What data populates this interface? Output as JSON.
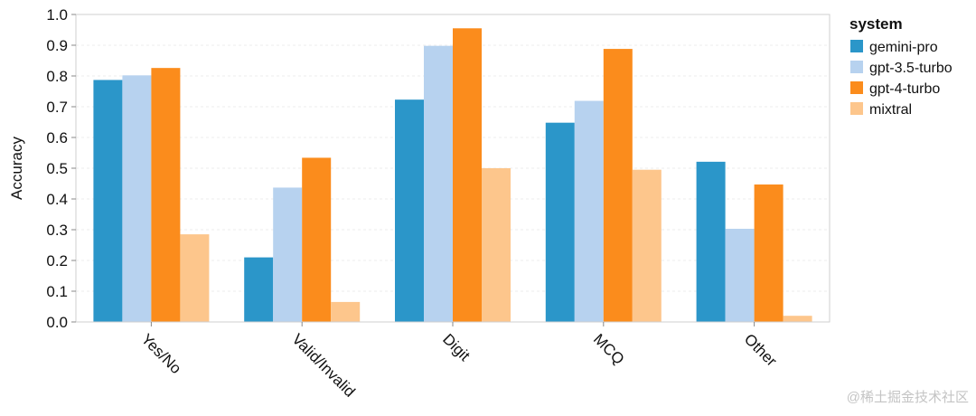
{
  "chart_data": {
    "type": "bar",
    "ylabel": "Accuracy",
    "xlabel": "",
    "ylim": [
      0,
      1.0
    ],
    "yticks": [
      "0.0",
      "0.1",
      "0.2",
      "0.3",
      "0.4",
      "0.5",
      "0.6",
      "0.7",
      "0.8",
      "0.9",
      "1.0"
    ],
    "grid": true,
    "categories": [
      "Yes/No",
      "Valid/Invalid",
      "Digit",
      "MCQ",
      "Other"
    ],
    "legend": {
      "title": "system",
      "placement": "right"
    },
    "series": [
      {
        "name": "gemini-pro",
        "color": "#2b96c9",
        "values": [
          0.787,
          0.21,
          0.723,
          0.648,
          0.521
        ]
      },
      {
        "name": "gpt-3.5-turbo",
        "color": "#b7d2ef",
        "values": [
          0.802,
          0.437,
          0.898,
          0.719,
          0.303
        ]
      },
      {
        "name": "gpt-4-turbo",
        "color": "#fb8c1c",
        "values": [
          0.826,
          0.534,
          0.955,
          0.888,
          0.447
        ]
      },
      {
        "name": "mixtral",
        "color": "#fdc68c",
        "values": [
          0.285,
          0.065,
          0.5,
          0.495,
          0.02
        ]
      }
    ]
  },
  "watermark": "@稀土掘金技术社区"
}
